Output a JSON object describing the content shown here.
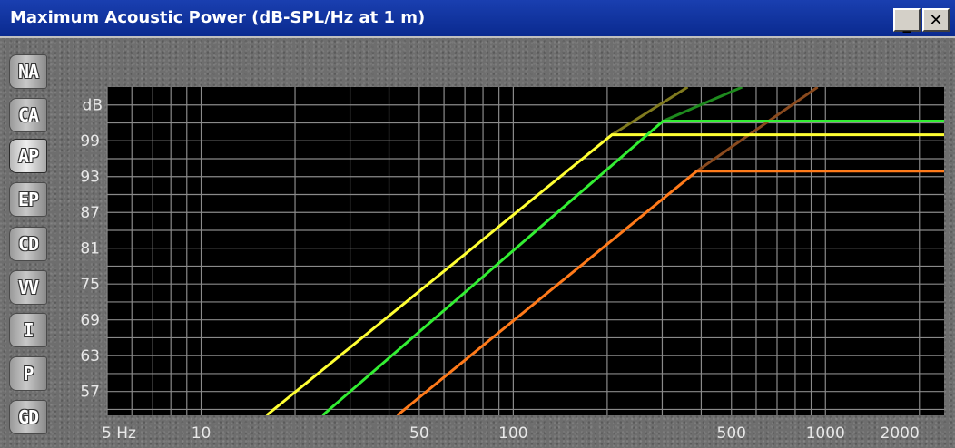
{
  "window": {
    "title": "Maximum Acoustic Power (dB-SPL/Hz at 1 m)",
    "minimize_label": "_",
    "close_label": "✕"
  },
  "tabs": [
    {
      "label": "NA",
      "active": false
    },
    {
      "label": "CA",
      "active": false
    },
    {
      "label": "AP",
      "active": true
    },
    {
      "label": "EP",
      "active": false
    },
    {
      "label": "CD",
      "active": false
    },
    {
      "label": "VV",
      "active": false
    },
    {
      "label": "I",
      "active": false
    },
    {
      "label": "P",
      "active": false
    },
    {
      "label": "GD",
      "active": false
    }
  ],
  "chart_data": {
    "type": "line",
    "title": "Maximum Acoustic Power (dB-SPL/Hz at 1 m)",
    "ylabel": "dB",
    "x_scale": "log",
    "xlim": [
      5,
      2400
    ],
    "ylim": [
      53,
      108
    ],
    "x_ticks": [
      {
        "value": 5,
        "label": "5 Hz"
      },
      {
        "value": 10,
        "label": "10"
      },
      {
        "value": 50,
        "label": "50"
      },
      {
        "value": 100,
        "label": "100"
      },
      {
        "value": 500,
        "label": "500"
      },
      {
        "value": 1000,
        "label": "1000"
      },
      {
        "value": 2000,
        "label": "2000"
      }
    ],
    "y_ticks": [
      57,
      63,
      69,
      75,
      81,
      87,
      93,
      99
    ],
    "grid": true,
    "background": "#000000",
    "series": [
      {
        "color": "#ffff33",
        "limit_color": "#807a1e",
        "x": [
          16.2,
          207,
          2400
        ],
        "y": [
          53,
          100,
          100
        ],
        "extension": {
          "x": [
            207,
            362
          ],
          "y": [
            100,
            108
          ]
        }
      },
      {
        "color": "#33ee33",
        "limit_color": "#1e8a1e",
        "x": [
          24.5,
          302,
          2400
        ],
        "y": [
          53,
          102.3,
          102.3
        ],
        "extension": {
          "x": [
            302,
            541
          ],
          "y": [
            102.3,
            108
          ]
        }
      },
      {
        "color": "#ff7a1a",
        "limit_color": "#8a4a1e",
        "x": [
          42.5,
          387,
          2400
        ],
        "y": [
          53,
          93.9,
          93.9
        ],
        "extension": {
          "x": [
            387,
            944
          ],
          "y": [
            93.9,
            108
          ]
        }
      }
    ]
  }
}
